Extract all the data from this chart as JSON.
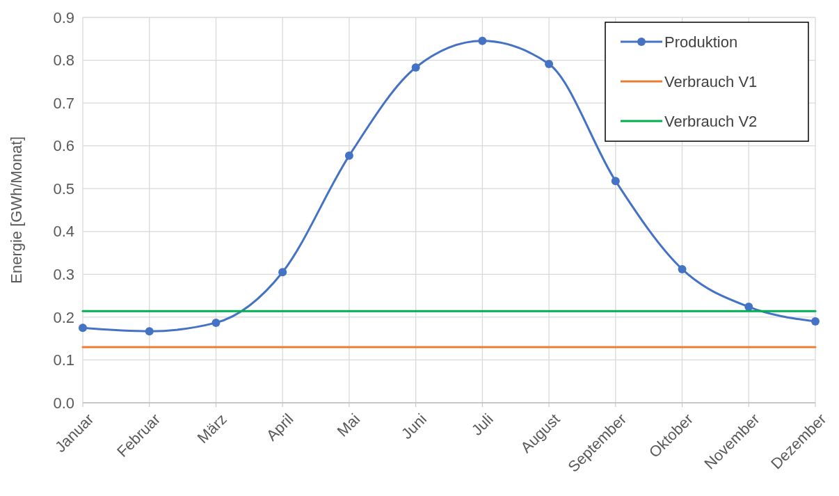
{
  "chart_data": {
    "type": "line",
    "ylabel": "Energie [GWh/Monat]",
    "categories": [
      "Januar",
      "Februar",
      "März",
      "April",
      "Mai",
      "Juni",
      "Juli",
      "August",
      "September",
      "Oktober",
      "November",
      "Dezember"
    ],
    "series": [
      {
        "name": "Produktion",
        "color": "#4472c4",
        "marker": "circle",
        "values": [
          0.175,
          0.167,
          0.187,
          0.305,
          0.577,
          0.783,
          0.845,
          0.791,
          0.518,
          0.312,
          0.224,
          0.19
        ]
      },
      {
        "name": "Verbrauch V1",
        "color": "#ed7d31",
        "marker": "none",
        "values": [
          0.13,
          0.13,
          0.13,
          0.13,
          0.13,
          0.13,
          0.13,
          0.13,
          0.13,
          0.13,
          0.13,
          0.13
        ]
      },
      {
        "name": "Verbrauch V2",
        "color": "#00b050",
        "marker": "none",
        "values": [
          0.214,
          0.214,
          0.214,
          0.214,
          0.214,
          0.214,
          0.214,
          0.214,
          0.214,
          0.214,
          0.214,
          0.214
        ]
      }
    ],
    "ylim": [
      0,
      0.9
    ],
    "yticks": [
      {
        "value": 0,
        "label": "0.0"
      },
      {
        "value": 0.1,
        "label": "0.1"
      },
      {
        "value": 0.2,
        "label": "0.2"
      },
      {
        "value": 0.3,
        "label": "0.3"
      },
      {
        "value": 0.4,
        "label": "0.4"
      },
      {
        "value": 0.5,
        "label": "0.5"
      },
      {
        "value": 0.6,
        "label": "0.6"
      },
      {
        "value": 0.7,
        "label": "0.7"
      },
      {
        "value": 0.8,
        "label": "0.8"
      },
      {
        "value": 0.9,
        "label": "0.9"
      }
    ],
    "grid": true,
    "legend": "top right",
    "line_style": "solid"
  }
}
